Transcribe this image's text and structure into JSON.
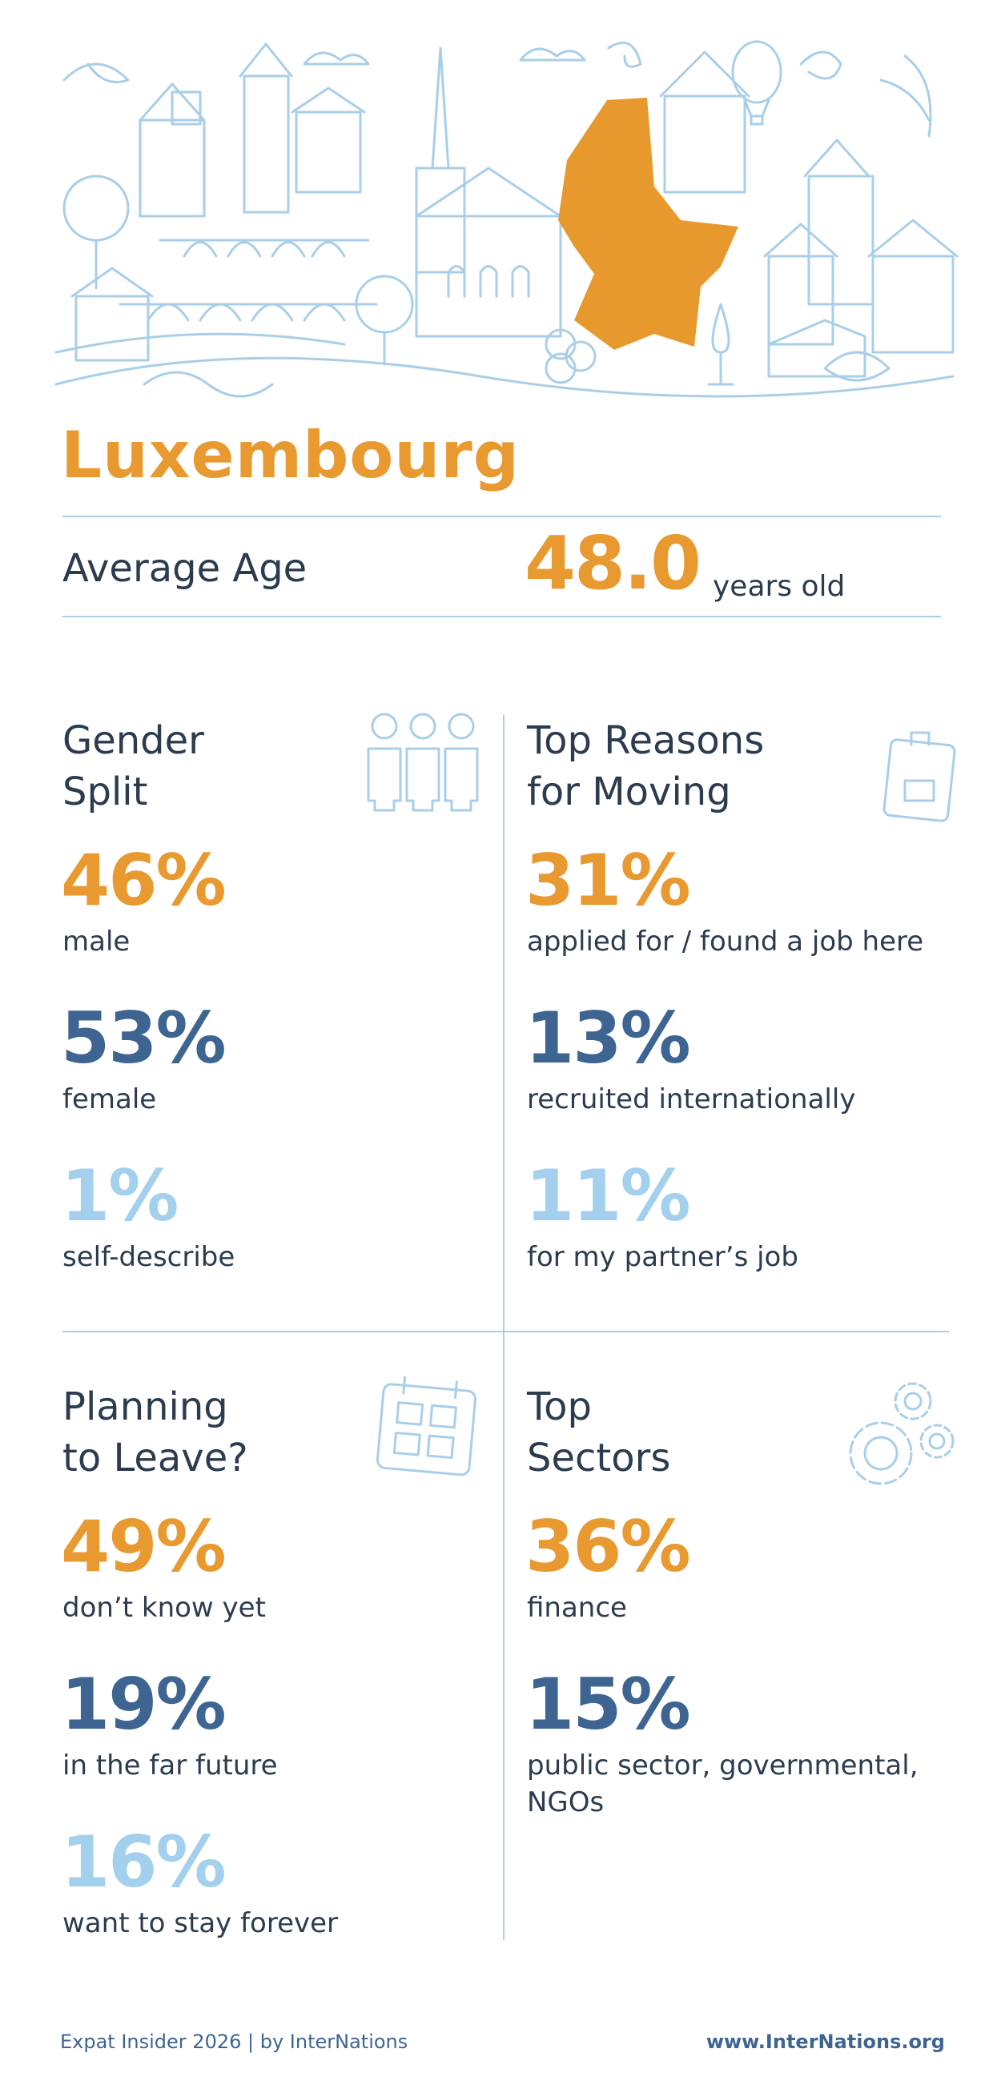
{
  "header": {
    "title": "Luxembourg"
  },
  "average_age": {
    "label": "Average Age",
    "value": "48.0",
    "unit": "years old"
  },
  "sections": [
    {
      "title": [
        "Gender",
        "Split"
      ],
      "stats": [
        {
          "value": "46%",
          "label": "male"
        },
        {
          "value": "53%",
          "label": "female"
        },
        {
          "value": "1%",
          "label": "self-describe"
        }
      ]
    },
    {
      "title": [
        "Top Reasons",
        "for Moving"
      ],
      "stats": [
        {
          "value": "31%",
          "label": "applied for / found a job here"
        },
        {
          "value": "13%",
          "label": "recruited internationally"
        },
        {
          "value": "11%",
          "label": "for my partner’s job"
        }
      ]
    },
    {
      "title": [
        "Planning",
        "to Leave?"
      ],
      "stats": [
        {
          "value": "49%",
          "label": "don’t know yet"
        },
        {
          "value": "19%",
          "label": "in the far future"
        },
        {
          "value": "16%",
          "label": "want to stay forever"
        }
      ]
    },
    {
      "title": [
        "Top",
        "Sectors"
      ],
      "stats": [
        {
          "value": "36%",
          "label": "finance"
        },
        {
          "value": "15%",
          "label": "public sector, governmental, NGOs"
        }
      ]
    }
  ],
  "footer": {
    "left": "Expat Insider 2026  |  by InterNations",
    "right": "www.InterNations.org"
  }
}
